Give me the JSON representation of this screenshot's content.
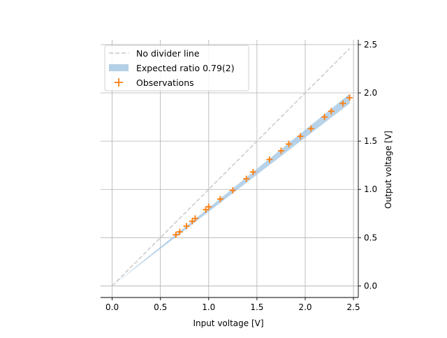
{
  "chart_data": {
    "type": "scatter",
    "title": "",
    "xlabel": "Input voltage [V]",
    "ylabel": "Output voltage [V]",
    "xlim": [
      -0.12,
      2.55
    ],
    "ylim": [
      -0.12,
      2.55
    ],
    "x_ticks": [
      0.0,
      0.5,
      1.0,
      1.5,
      2.0,
      2.5
    ],
    "y_ticks": [
      0.0,
      0.5,
      1.0,
      1.5,
      2.0,
      2.5
    ],
    "x_tick_labels": [
      "0.0",
      "0.5",
      "1.0",
      "1.5",
      "2.0",
      "2.5"
    ],
    "y_tick_labels": [
      "0.0",
      "0.5",
      "1.0",
      "1.5",
      "2.0",
      "2.5"
    ],
    "y_axis_side": "right",
    "grid": true,
    "legend_position": "upper-left",
    "colors": {
      "reference": "#c8c8c8",
      "band": "#a6c8e3",
      "observations": "#ff7f0e",
      "grid": "#b0b0b0"
    },
    "series": [
      {
        "name": "No divider line",
        "kind": "dashed-line",
        "x": [
          0.0,
          2.46
        ],
        "y": [
          0.0,
          2.46
        ]
      },
      {
        "name": "Expected ratio 0.79(2)",
        "kind": "band",
        "x": [
          0.0,
          2.46
        ],
        "y_lower": [
          0.0,
          1.89
        ],
        "y_upper": [
          0.0,
          1.99
        ]
      },
      {
        "name": "Observations",
        "kind": "markers",
        "marker": "plus",
        "x": [
          0.66,
          0.7,
          0.77,
          0.83,
          0.86,
          0.97,
          1.0,
          1.12,
          1.25,
          1.39,
          1.46,
          1.63,
          1.75,
          1.83,
          1.95,
          2.06,
          2.2,
          2.27,
          2.39,
          2.46
        ],
        "y": [
          0.53,
          0.56,
          0.62,
          0.67,
          0.7,
          0.79,
          0.82,
          0.9,
          0.99,
          1.11,
          1.18,
          1.31,
          1.4,
          1.47,
          1.55,
          1.63,
          1.75,
          1.81,
          1.89,
          1.95
        ]
      }
    ]
  }
}
